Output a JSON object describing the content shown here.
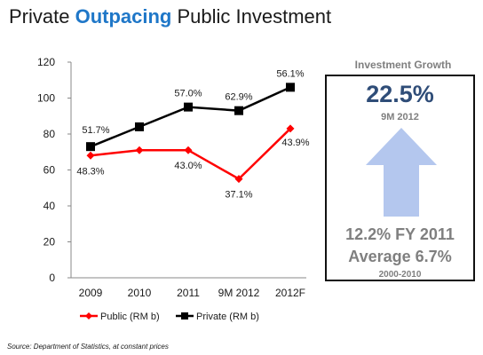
{
  "title": {
    "before": "Private ",
    "highlight": "Outpacing",
    "after": " Public Investment"
  },
  "chart_data": {
    "type": "line",
    "categories": [
      "2009",
      "2010",
      "2011",
      "9M 2012",
      "2012F"
    ],
    "ylim": [
      0,
      120
    ],
    "yticks": [
      0,
      20,
      40,
      60,
      80,
      100,
      120
    ],
    "grid": false,
    "legend": "bottom",
    "series": [
      {
        "name": "Public (RM b)",
        "color": "#ff0000",
        "marker": "diamond",
        "values": [
          68,
          71,
          71,
          55,
          83
        ],
        "labels": [
          "48.3%",
          "",
          "43.0%",
          "37.1%",
          "43.9%"
        ]
      },
      {
        "name": "Private (RM b)",
        "color": "#000000",
        "marker": "square",
        "values": [
          73,
          84,
          95,
          93,
          106
        ],
        "labels": [
          "51.7%",
          "",
          "57.0%",
          "62.9%",
          "56.1%"
        ]
      }
    ]
  },
  "growth": {
    "title": "Investment Growth",
    "value": "22.5%",
    "period": "9M 2012",
    "fy": "12.2% FY 2011",
    "avg": "Average 6.7%",
    "avg_period": "2000-2010",
    "arrow_color": "#b4c7ee"
  },
  "source": "Source: Department of Statistics, at constant prices"
}
